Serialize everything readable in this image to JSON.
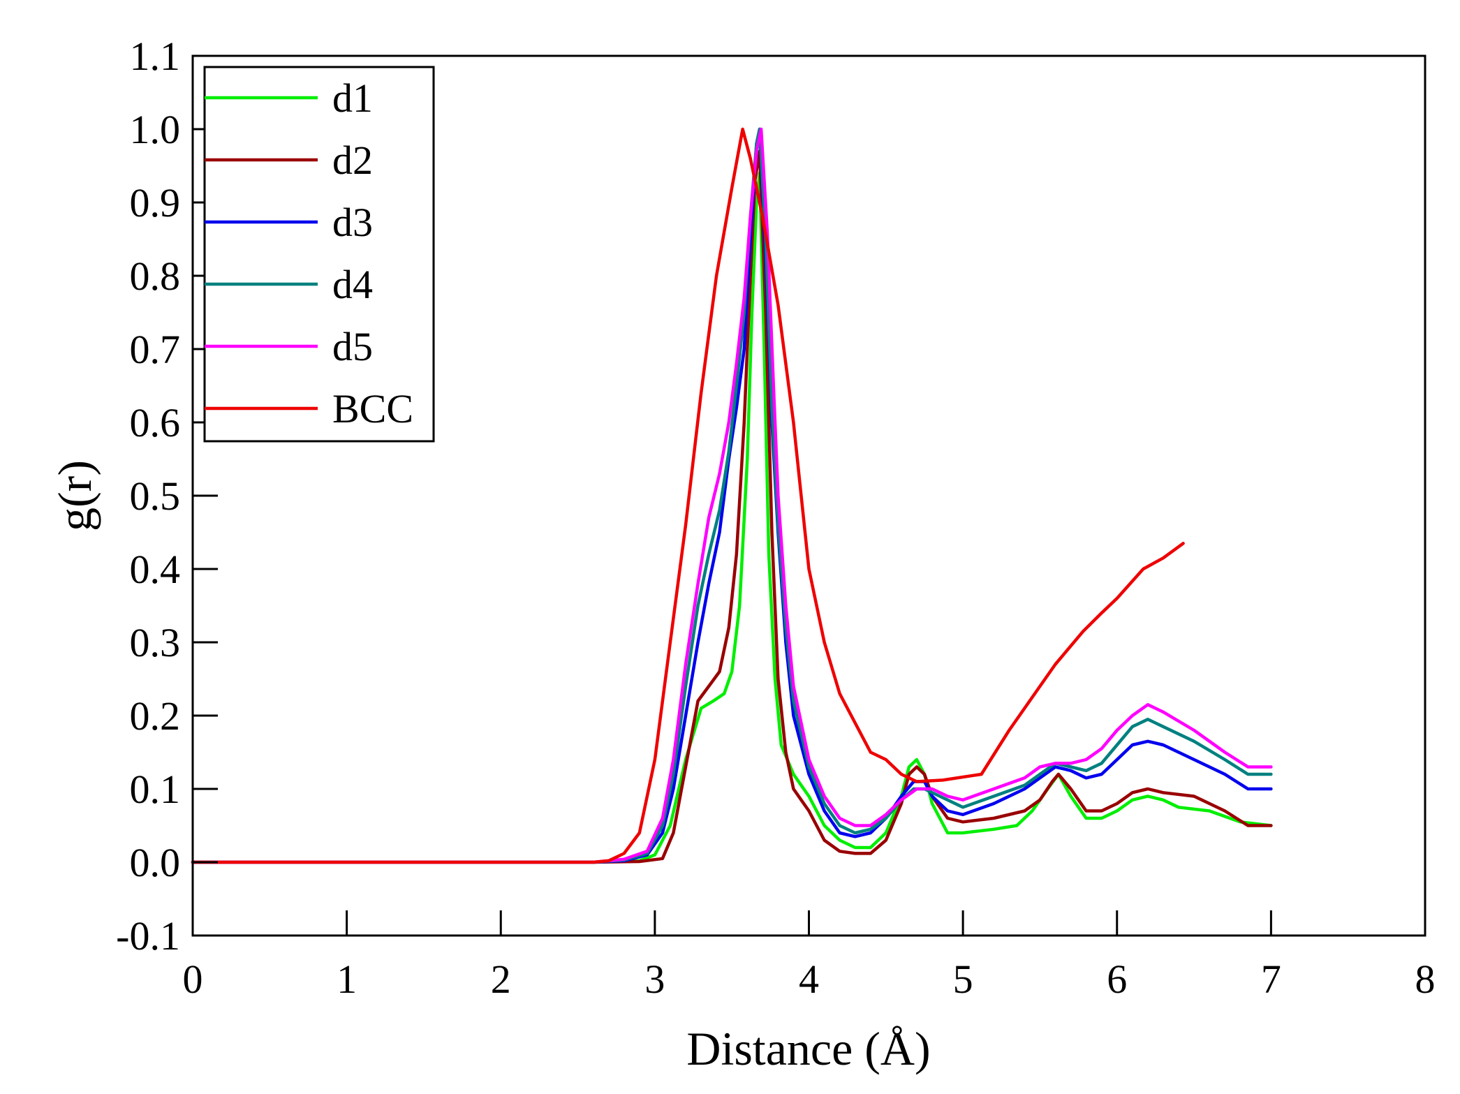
{
  "chart_data": {
    "type": "line",
    "title": "",
    "xlabel": "Distance (Å)",
    "ylabel": "g(r)",
    "xlim": [
      0,
      8
    ],
    "ylim": [
      -0.1,
      1.1
    ],
    "xticks": [
      0,
      1,
      2,
      3,
      4,
      5,
      6,
      7,
      8
    ],
    "xtick_labels": [
      "0",
      "1",
      "2",
      "3",
      "4",
      "5",
      "6",
      "7",
      "8"
    ],
    "yticks": [
      -0.1,
      0.0,
      0.1,
      0.2,
      0.3,
      0.4,
      0.5,
      0.6,
      0.7,
      0.8,
      0.9,
      1.0,
      1.1
    ],
    "ytick_labels": [
      "-0.1",
      "0.0",
      "0.1",
      "0.2",
      "0.3",
      "0.4",
      "0.5",
      "0.6",
      "0.7",
      "0.8",
      "0.9",
      "1.0",
      "1.1"
    ],
    "grid": false,
    "legend_position": "top-left",
    "series": [
      {
        "name": "d1",
        "color": "#00ee00",
        "points": [
          [
            0,
            0
          ],
          [
            2.6,
            0
          ],
          [
            2.9,
            0.002
          ],
          [
            3.0,
            0.01
          ],
          [
            3.1,
            0.05
          ],
          [
            3.2,
            0.14
          ],
          [
            3.3,
            0.21
          ],
          [
            3.38,
            0.22
          ],
          [
            3.45,
            0.23
          ],
          [
            3.5,
            0.26
          ],
          [
            3.55,
            0.35
          ],
          [
            3.6,
            0.55
          ],
          [
            3.63,
            0.75
          ],
          [
            3.66,
            0.9
          ],
          [
            3.68,
            0.94
          ],
          [
            3.71,
            0.7
          ],
          [
            3.74,
            0.42
          ],
          [
            3.78,
            0.25
          ],
          [
            3.82,
            0.16
          ],
          [
            3.9,
            0.12
          ],
          [
            4.0,
            0.09
          ],
          [
            4.1,
            0.05
          ],
          [
            4.2,
            0.03
          ],
          [
            4.3,
            0.02
          ],
          [
            4.4,
            0.02
          ],
          [
            4.5,
            0.04
          ],
          [
            4.6,
            0.09
          ],
          [
            4.65,
            0.13
          ],
          [
            4.7,
            0.14
          ],
          [
            4.75,
            0.12
          ],
          [
            4.8,
            0.08
          ],
          [
            4.9,
            0.04
          ],
          [
            5.0,
            0.04
          ],
          [
            5.2,
            0.045
          ],
          [
            5.35,
            0.05
          ],
          [
            5.45,
            0.07
          ],
          [
            5.55,
            0.1
          ],
          [
            5.62,
            0.12
          ],
          [
            5.7,
            0.09
          ],
          [
            5.8,
            0.06
          ],
          [
            5.9,
            0.06
          ],
          [
            6.0,
            0.07
          ],
          [
            6.1,
            0.085
          ],
          [
            6.2,
            0.09
          ],
          [
            6.3,
            0.085
          ],
          [
            6.4,
            0.075
          ],
          [
            6.6,
            0.07
          ],
          [
            6.8,
            0.055
          ],
          [
            7.0,
            0.05
          ]
        ]
      },
      {
        "name": "d2",
        "color": "#990000",
        "points": [
          [
            0,
            0
          ],
          [
            2.6,
            0
          ],
          [
            2.9,
            0.001
          ],
          [
            3.05,
            0.005
          ],
          [
            3.12,
            0.04
          ],
          [
            3.2,
            0.13
          ],
          [
            3.28,
            0.22
          ],
          [
            3.35,
            0.24
          ],
          [
            3.42,
            0.26
          ],
          [
            3.48,
            0.32
          ],
          [
            3.53,
            0.42
          ],
          [
            3.58,
            0.6
          ],
          [
            3.62,
            0.8
          ],
          [
            3.65,
            0.93
          ],
          [
            3.68,
            0.97
          ],
          [
            3.72,
            0.75
          ],
          [
            3.76,
            0.45
          ],
          [
            3.8,
            0.25
          ],
          [
            3.85,
            0.15
          ],
          [
            3.9,
            0.1
          ],
          [
            4.0,
            0.07
          ],
          [
            4.1,
            0.03
          ],
          [
            4.2,
            0.015
          ],
          [
            4.3,
            0.012
          ],
          [
            4.4,
            0.012
          ],
          [
            4.5,
            0.03
          ],
          [
            4.6,
            0.08
          ],
          [
            4.65,
            0.12
          ],
          [
            4.7,
            0.13
          ],
          [
            4.75,
            0.12
          ],
          [
            4.8,
            0.09
          ],
          [
            4.9,
            0.06
          ],
          [
            5.0,
            0.055
          ],
          [
            5.2,
            0.06
          ],
          [
            5.4,
            0.07
          ],
          [
            5.5,
            0.085
          ],
          [
            5.58,
            0.11
          ],
          [
            5.62,
            0.12
          ],
          [
            5.7,
            0.1
          ],
          [
            5.8,
            0.07
          ],
          [
            5.9,
            0.07
          ],
          [
            6.0,
            0.08
          ],
          [
            6.1,
            0.095
          ],
          [
            6.2,
            0.1
          ],
          [
            6.3,
            0.095
          ],
          [
            6.5,
            0.09
          ],
          [
            6.7,
            0.07
          ],
          [
            6.85,
            0.05
          ],
          [
            7.0,
            0.05
          ]
        ]
      },
      {
        "name": "d3",
        "color": "#0000ee",
        "points": [
          [
            0,
            0
          ],
          [
            2.6,
            0
          ],
          [
            2.8,
            0.002
          ],
          [
            2.95,
            0.01
          ],
          [
            3.05,
            0.04
          ],
          [
            3.12,
            0.1
          ],
          [
            3.2,
            0.2
          ],
          [
            3.28,
            0.3
          ],
          [
            3.35,
            0.38
          ],
          [
            3.42,
            0.45
          ],
          [
            3.48,
            0.55
          ],
          [
            3.53,
            0.62
          ],
          [
            3.58,
            0.7
          ],
          [
            3.62,
            0.85
          ],
          [
            3.66,
            0.98
          ],
          [
            3.68,
            1.0
          ],
          [
            3.72,
            0.82
          ],
          [
            3.76,
            0.6
          ],
          [
            3.8,
            0.45
          ],
          [
            3.85,
            0.3
          ],
          [
            3.9,
            0.2
          ],
          [
            4.0,
            0.12
          ],
          [
            4.1,
            0.07
          ],
          [
            4.2,
            0.04
          ],
          [
            4.3,
            0.035
          ],
          [
            4.4,
            0.04
          ],
          [
            4.5,
            0.06
          ],
          [
            4.6,
            0.09
          ],
          [
            4.68,
            0.11
          ],
          [
            4.75,
            0.11
          ],
          [
            4.8,
            0.09
          ],
          [
            4.9,
            0.07
          ],
          [
            5.0,
            0.065
          ],
          [
            5.2,
            0.08
          ],
          [
            5.4,
            0.1
          ],
          [
            5.5,
            0.115
          ],
          [
            5.6,
            0.13
          ],
          [
            5.7,
            0.125
          ],
          [
            5.8,
            0.115
          ],
          [
            5.9,
            0.12
          ],
          [
            6.0,
            0.14
          ],
          [
            6.1,
            0.16
          ],
          [
            6.2,
            0.165
          ],
          [
            6.3,
            0.16
          ],
          [
            6.5,
            0.14
          ],
          [
            6.7,
            0.12
          ],
          [
            6.85,
            0.1
          ],
          [
            7.0,
            0.1
          ]
        ]
      },
      {
        "name": "d4",
        "color": "#008080",
        "points": [
          [
            0,
            0
          ],
          [
            2.6,
            0
          ],
          [
            2.8,
            0.003
          ],
          [
            2.95,
            0.012
          ],
          [
            3.05,
            0.05
          ],
          [
            3.12,
            0.12
          ],
          [
            3.2,
            0.24
          ],
          [
            3.28,
            0.35
          ],
          [
            3.35,
            0.42
          ],
          [
            3.42,
            0.48
          ],
          [
            3.48,
            0.56
          ],
          [
            3.53,
            0.65
          ],
          [
            3.58,
            0.75
          ],
          [
            3.62,
            0.88
          ],
          [
            3.66,
            0.98
          ],
          [
            3.68,
            1.0
          ],
          [
            3.72,
            0.85
          ],
          [
            3.76,
            0.62
          ],
          [
            3.8,
            0.46
          ],
          [
            3.85,
            0.32
          ],
          [
            3.9,
            0.22
          ],
          [
            4.0,
            0.13
          ],
          [
            4.1,
            0.08
          ],
          [
            4.2,
            0.05
          ],
          [
            4.3,
            0.04
          ],
          [
            4.4,
            0.045
          ],
          [
            4.5,
            0.06
          ],
          [
            4.6,
            0.085
          ],
          [
            4.68,
            0.1
          ],
          [
            4.75,
            0.1
          ],
          [
            4.85,
            0.09
          ],
          [
            5.0,
            0.075
          ],
          [
            5.2,
            0.09
          ],
          [
            5.4,
            0.105
          ],
          [
            5.5,
            0.12
          ],
          [
            5.6,
            0.135
          ],
          [
            5.7,
            0.13
          ],
          [
            5.8,
            0.125
          ],
          [
            5.9,
            0.135
          ],
          [
            6.0,
            0.16
          ],
          [
            6.1,
            0.185
          ],
          [
            6.2,
            0.195
          ],
          [
            6.3,
            0.185
          ],
          [
            6.5,
            0.165
          ],
          [
            6.7,
            0.14
          ],
          [
            6.85,
            0.12
          ],
          [
            7.0,
            0.12
          ]
        ]
      },
      {
        "name": "d5",
        "color": "#ff00ff",
        "points": [
          [
            0,
            0
          ],
          [
            2.6,
            0
          ],
          [
            2.8,
            0.004
          ],
          [
            2.95,
            0.015
          ],
          [
            3.05,
            0.06
          ],
          [
            3.12,
            0.14
          ],
          [
            3.2,
            0.27
          ],
          [
            3.28,
            0.38
          ],
          [
            3.35,
            0.47
          ],
          [
            3.42,
            0.53
          ],
          [
            3.48,
            0.6
          ],
          [
            3.53,
            0.68
          ],
          [
            3.58,
            0.77
          ],
          [
            3.62,
            0.88
          ],
          [
            3.66,
            0.97
          ],
          [
            3.69,
            1.0
          ],
          [
            3.73,
            0.86
          ],
          [
            3.77,
            0.65
          ],
          [
            3.8,
            0.5
          ],
          [
            3.85,
            0.35
          ],
          [
            3.9,
            0.24
          ],
          [
            4.0,
            0.14
          ],
          [
            4.1,
            0.09
          ],
          [
            4.2,
            0.06
          ],
          [
            4.3,
            0.05
          ],
          [
            4.4,
            0.05
          ],
          [
            4.5,
            0.065
          ],
          [
            4.6,
            0.085
          ],
          [
            4.7,
            0.1
          ],
          [
            4.8,
            0.1
          ],
          [
            4.9,
            0.09
          ],
          [
            5.0,
            0.085
          ],
          [
            5.2,
            0.1
          ],
          [
            5.4,
            0.115
          ],
          [
            5.5,
            0.13
          ],
          [
            5.6,
            0.135
          ],
          [
            5.7,
            0.135
          ],
          [
            5.8,
            0.14
          ],
          [
            5.9,
            0.155
          ],
          [
            6.0,
            0.18
          ],
          [
            6.1,
            0.2
          ],
          [
            6.2,
            0.215
          ],
          [
            6.3,
            0.205
          ],
          [
            6.5,
            0.18
          ],
          [
            6.7,
            0.15
          ],
          [
            6.85,
            0.13
          ],
          [
            7.0,
            0.13
          ]
        ]
      },
      {
        "name": "BCC",
        "color": "#ee0000",
        "points": [
          [
            0,
            0
          ],
          [
            2.6,
            0
          ],
          [
            2.7,
            0.002
          ],
          [
            2.8,
            0.012
          ],
          [
            2.9,
            0.04
          ],
          [
            3.0,
            0.14
          ],
          [
            3.1,
            0.3
          ],
          [
            3.2,
            0.46
          ],
          [
            3.3,
            0.64
          ],
          [
            3.4,
            0.8
          ],
          [
            3.5,
            0.92
          ],
          [
            3.57,
            1.0
          ],
          [
            3.62,
            0.96
          ],
          [
            3.7,
            0.88
          ],
          [
            3.8,
            0.76
          ],
          [
            3.9,
            0.6
          ],
          [
            4.0,
            0.4
          ],
          [
            4.1,
            0.3
          ],
          [
            4.2,
            0.23
          ],
          [
            4.3,
            0.19
          ],
          [
            4.4,
            0.15
          ],
          [
            4.5,
            0.14
          ],
          [
            4.6,
            0.12
          ],
          [
            4.7,
            0.11
          ],
          [
            4.87,
            0.112
          ],
          [
            5.12,
            0.12
          ],
          [
            5.3,
            0.18
          ],
          [
            5.5,
            0.24
          ],
          [
            5.6,
            0.27
          ],
          [
            5.78,
            0.315
          ],
          [
            5.9,
            0.34
          ],
          [
            6.0,
            0.36
          ],
          [
            6.17,
            0.4
          ],
          [
            6.3,
            0.415
          ],
          [
            6.43,
            0.435
          ]
        ]
      }
    ]
  }
}
